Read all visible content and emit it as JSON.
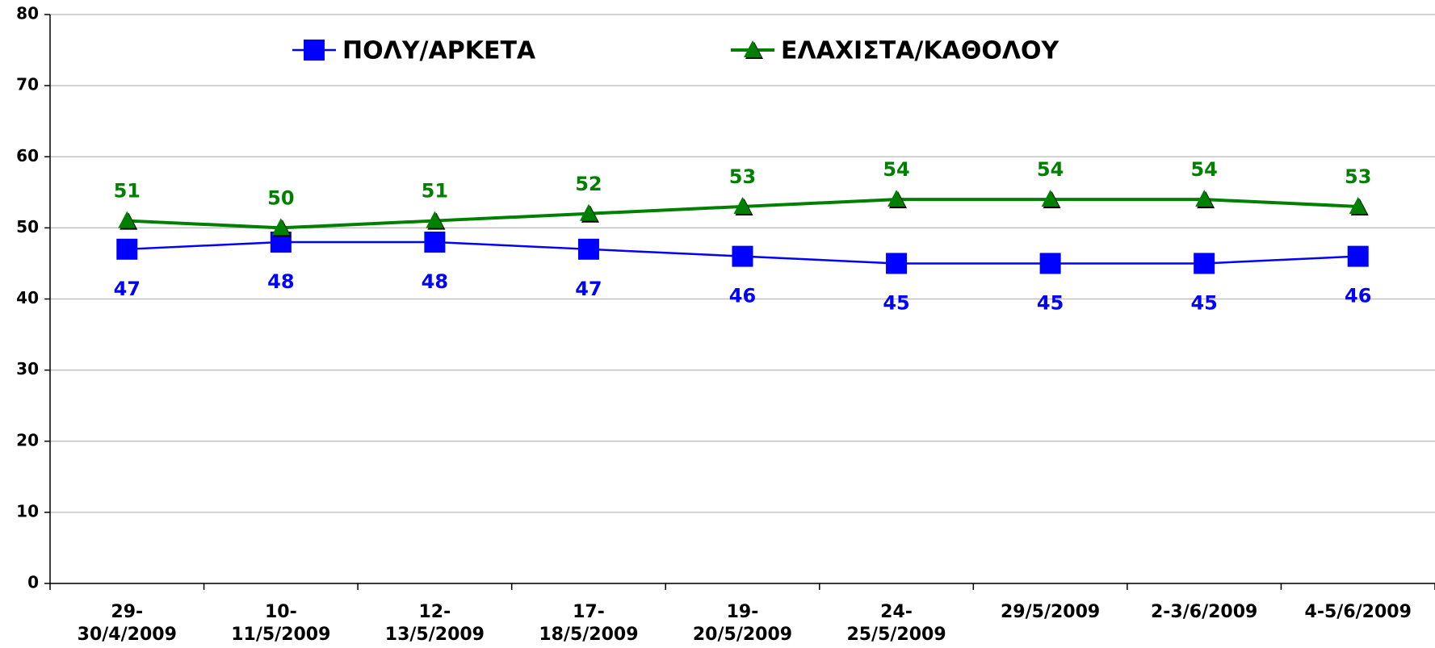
{
  "chart_data": {
    "type": "line",
    "categories": [
      "29-\n30/4/2009",
      "10-\n11/5/2009",
      "12-\n13/5/2009",
      "17-\n18/5/2009",
      "19-\n20/5/2009",
      "24-\n25/5/2009",
      "29/5/2009",
      "2-3/6/2009",
      "4-5/6/2009"
    ],
    "series": [
      {
        "name": "ΠΟΛΥ/ΑΡΚΕΤΑ",
        "color": "#0000ff",
        "marker": "square",
        "values": [
          47,
          48,
          48,
          47,
          46,
          45,
          45,
          45,
          46
        ]
      },
      {
        "name": "ΕΛΑΧΙΣΤΑ/ΚΑΘΟΛΟΥ",
        "color": "#008000",
        "marker": "triangle",
        "values": [
          51,
          50,
          51,
          52,
          53,
          54,
          54,
          54,
          53
        ]
      }
    ],
    "ylim": [
      0,
      80
    ],
    "yticks": [
      0,
      10,
      20,
      30,
      40,
      50,
      60,
      70,
      80
    ],
    "grid": true,
    "legend": "top"
  }
}
